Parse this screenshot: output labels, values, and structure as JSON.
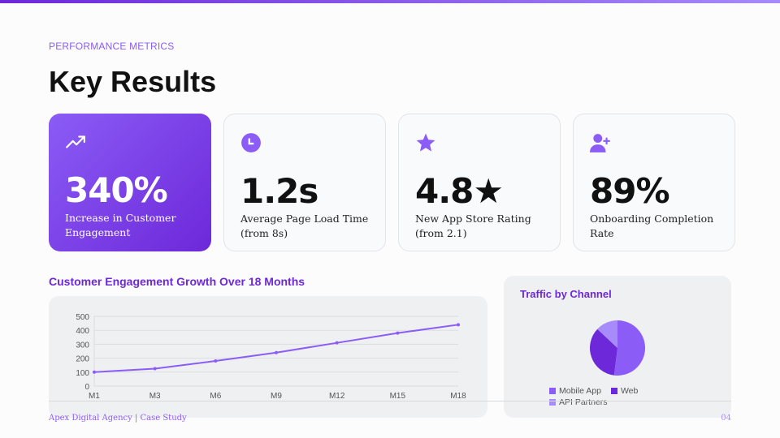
{
  "header": {
    "eyebrow": "PERFORMANCE METRICS",
    "title": "Key Results"
  },
  "cards": [
    {
      "icon": "trending-up-icon",
      "value": "340%",
      "label": "Increase in Customer Engagement",
      "highlight": true
    },
    {
      "icon": "clock-icon",
      "value": "1.2s",
      "label": "Average Page Load Time (from 8s)"
    },
    {
      "icon": "star-icon",
      "value": "4.8★",
      "label": "New App Store Rating (from 2.1)"
    },
    {
      "icon": "user-plus-icon",
      "value": "89%",
      "label": "Onboarding Completion Rate"
    }
  ],
  "colors": {
    "accent": "#8b5cf6",
    "accent_dark": "#6d28d9",
    "accent_light": "#a78bfa"
  },
  "chart_data": [
    {
      "type": "line",
      "title": "Customer Engagement Growth Over 18 Months",
      "categories": [
        "M1",
        "M3",
        "M6",
        "M9",
        "M12",
        "M15",
        "M18"
      ],
      "values": [
        100,
        125,
        180,
        240,
        310,
        380,
        440
      ],
      "ylim": [
        0,
        500
      ],
      "yticks": [
        "0",
        "100",
        "200",
        "300",
        "400",
        "500"
      ],
      "grid": true,
      "color": "#8b5cf6"
    },
    {
      "type": "pie",
      "title": "Traffic by Channel",
      "categories": [
        "Mobile App",
        "Web",
        "API Partners"
      ],
      "values": [
        52,
        35,
        13
      ],
      "colors": [
        "#8b5cf6",
        "#6d28d9",
        "#a78bfa"
      ],
      "legend": "bottom"
    }
  ],
  "footer": {
    "text": "Apex Digital Agency | Case Study",
    "page": "04"
  }
}
